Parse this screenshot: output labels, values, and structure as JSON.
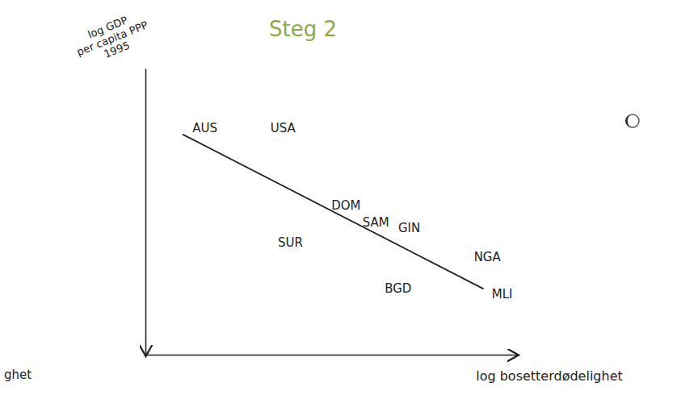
{
  "chart_data": {
    "type": "scatter",
    "title": "Steg 2",
    "ylabel": [
      "log GDP",
      "per capita PPP",
      "1995"
    ],
    "xlabel": "log bosetterdødelighet",
    "annotation": "ghet",
    "labels": [
      "AUS",
      "USA",
      "DOM",
      "SAM",
      "GIN",
      "SUR",
      "NGA",
      "BGD",
      "MLI"
    ],
    "x": [
      16,
      37,
      54,
      62,
      71,
      39,
      92,
      68,
      96
    ],
    "y": [
      79,
      79,
      52,
      46,
      44,
      39,
      34,
      23,
      21
    ],
    "line": {
      "x": [
        10,
        91
      ],
      "y": [
        77,
        23
      ]
    },
    "xlim": [
      0,
      100
    ],
    "ylim": [
      0,
      100
    ],
    "tick_labels": false,
    "grid": false,
    "marker": "label",
    "color": "#222222"
  }
}
